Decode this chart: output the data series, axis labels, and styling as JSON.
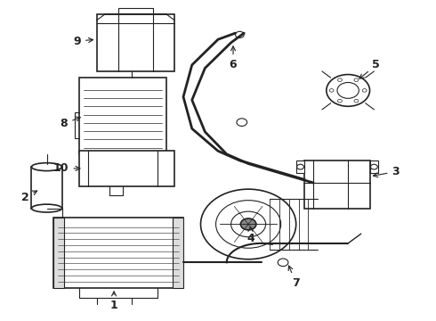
{
  "background_color": "#ffffff",
  "line_color": "#222222",
  "label_color": "#111111",
  "fig_width": 4.9,
  "fig_height": 3.6,
  "dpi": 100
}
